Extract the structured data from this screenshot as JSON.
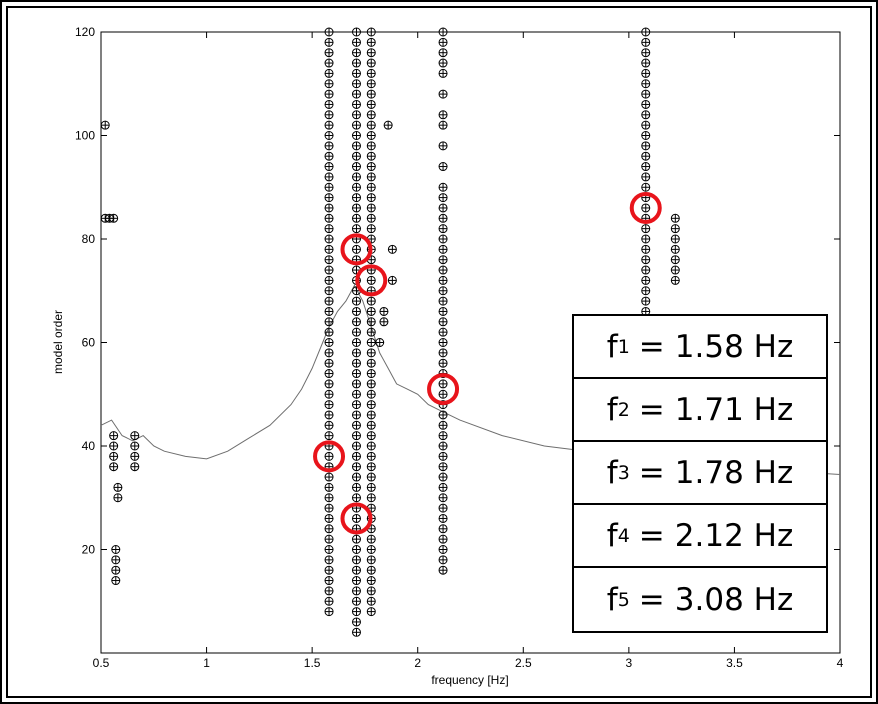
{
  "chart_data": {
    "type": "scatter",
    "xlabel": "frequency [Hz]",
    "ylabel": "model order",
    "xlim": [
      0.5,
      4
    ],
    "ylim": [
      0,
      120
    ],
    "xticks": [
      "0.5",
      "1",
      "1.5",
      "2",
      "2.5",
      "3",
      "3.5",
      "4"
    ],
    "yticks": [
      "20",
      "40",
      "60",
      "80",
      "100",
      "120"
    ],
    "marker": "circle-plus",
    "columns": [
      {
        "x": 1.58,
        "y_from": 8,
        "y_to": 120
      },
      {
        "x": 1.71,
        "y_from": 4,
        "y_to": 120
      },
      {
        "x": 1.78,
        "y_from": 8,
        "y_to": 120
      },
      {
        "x": 2.12,
        "y_from": 16,
        "y_to": 90
      },
      {
        "x": 3.08,
        "y_from": 40,
        "y_to": 120
      },
      {
        "x": 3.22,
        "y_from": 72,
        "y_to": 84
      }
    ],
    "points": [
      {
        "x": 0.52,
        "y": 102
      },
      {
        "x": 0.52,
        "y": 84
      },
      {
        "x": 0.54,
        "y": 84
      },
      {
        "x": 0.56,
        "y": 84
      },
      {
        "x": 0.56,
        "y": 42
      },
      {
        "x": 0.56,
        "y": 40
      },
      {
        "x": 0.56,
        "y": 38
      },
      {
        "x": 0.56,
        "y": 36
      },
      {
        "x": 0.58,
        "y": 32
      },
      {
        "x": 0.58,
        "y": 30
      },
      {
        "x": 0.57,
        "y": 20
      },
      {
        "x": 0.57,
        "y": 18
      },
      {
        "x": 0.57,
        "y": 16
      },
      {
        "x": 0.57,
        "y": 14
      },
      {
        "x": 0.66,
        "y": 42
      },
      {
        "x": 0.66,
        "y": 40
      },
      {
        "x": 0.66,
        "y": 38
      },
      {
        "x": 0.66,
        "y": 36
      },
      {
        "x": 1.86,
        "y": 102
      },
      {
        "x": 1.88,
        "y": 78
      },
      {
        "x": 1.88,
        "y": 72
      },
      {
        "x": 1.84,
        "y": 66
      },
      {
        "x": 1.84,
        "y": 64
      },
      {
        "x": 1.82,
        "y": 60
      },
      {
        "x": 2.12,
        "y": 94
      },
      {
        "x": 2.12,
        "y": 98
      },
      {
        "x": 2.12,
        "y": 102
      },
      {
        "x": 2.12,
        "y": 104
      },
      {
        "x": 2.12,
        "y": 108
      },
      {
        "x": 2.12,
        "y": 112
      },
      {
        "x": 2.12,
        "y": 114
      },
      {
        "x": 2.12,
        "y": 116
      },
      {
        "x": 2.12,
        "y": 118
      },
      {
        "x": 2.12,
        "y": 120
      }
    ],
    "spectrum": {
      "x": [
        0.5,
        0.55,
        0.6,
        0.65,
        0.7,
        0.75,
        0.8,
        0.9,
        1.0,
        1.1,
        1.2,
        1.3,
        1.4,
        1.45,
        1.5,
        1.55,
        1.58,
        1.62,
        1.66,
        1.7,
        1.74,
        1.78,
        1.82,
        1.86,
        1.9,
        1.95,
        2.0,
        2.05,
        2.1,
        2.2,
        2.4,
        2.6,
        2.8,
        3.0,
        3.2,
        3.4,
        3.6,
        3.8,
        4.0
      ],
      "y": [
        44,
        45,
        42,
        41,
        42,
        40,
        39,
        38,
        37.5,
        39,
        41.5,
        44,
        48,
        51,
        55,
        60,
        63,
        66,
        68,
        71,
        68,
        63,
        58,
        55,
        52,
        51,
        50,
        48,
        47,
        45,
        42,
        40,
        39,
        38,
        37,
        36,
        35.5,
        35,
        34.5
      ]
    },
    "highlighted": [
      {
        "x": 1.58,
        "y": 38
      },
      {
        "x": 1.71,
        "y": 78
      },
      {
        "x": 1.71,
        "y": 26
      },
      {
        "x": 1.78,
        "y": 72
      },
      {
        "x": 2.12,
        "y": 51
      },
      {
        "x": 3.08,
        "y": 86
      }
    ],
    "colors": {
      "marker": "#000000",
      "spectrum": "#6e6e6e",
      "highlight": "#e8141b",
      "axes": "#000000"
    }
  },
  "frequencies": [
    {
      "symbol": "f",
      "index": "1",
      "eq": "=",
      "value": "1.58 Hz"
    },
    {
      "symbol": "f",
      "index": "2",
      "eq": "=",
      "value": "1.71 Hz"
    },
    {
      "symbol": "f",
      "index": "3",
      "eq": "=",
      "value": "1.78 Hz"
    },
    {
      "symbol": "f",
      "index": "4",
      "eq": "=",
      "value": "2.12 Hz"
    },
    {
      "symbol": "f",
      "index": "5",
      "eq": "=",
      "value": "3.08 Hz"
    }
  ]
}
